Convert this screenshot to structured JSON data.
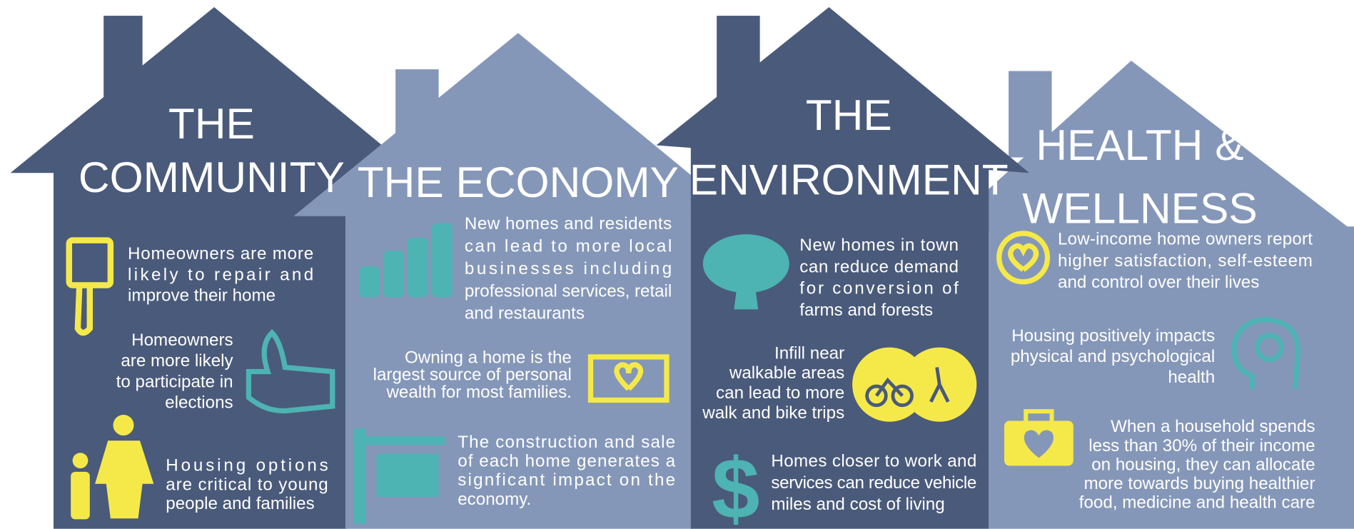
{
  "houses": [
    {
      "title": [
        "THE",
        "COMMUNITY"
      ],
      "items": [
        [
          "Homeowners are more",
          "likely to repair and",
          "improve their home"
        ],
        [
          "Homeowners",
          "are more likely",
          "to participate in",
          "elections"
        ],
        [
          "Housing options",
          "are critical to young",
          "people and families"
        ]
      ]
    },
    {
      "title": [
        "THE ECONOMY"
      ],
      "items": [
        [
          "New homes and residents",
          "can lead to more local",
          "businesses including",
          "professional services, retail",
          "and restaurants"
        ],
        [
          "Owning a home is the",
          "largest source of personal",
          "wealth for most families."
        ],
        [
          "The construction and sale",
          "of each home generates a",
          "signficant impact on the",
          "economy."
        ]
      ]
    },
    {
      "title": [
        "THE",
        "ENVIRONMENT"
      ],
      "items": [
        [
          "New homes in town",
          "can reduce demand",
          "for conversion of",
          "farms and forests"
        ],
        [
          "Infill near",
          "walkable areas",
          "can lead to more",
          "walk and bike trips"
        ],
        [
          "Homes closer to work and",
          "services can reduce vehicle",
          "miles and cost of living"
        ]
      ]
    },
    {
      "title": [
        "HEALTH &",
        "WELLNESS"
      ],
      "items": [
        [
          "Low-income home owners report",
          "higher satisfaction, self-esteem",
          "and control over their lives"
        ],
        [
          "Housing positively impacts",
          "physical and psychological",
          "health"
        ],
        [
          "When a household spends",
          "less than 30% of their income",
          "on housing, they can allocate",
          "more towards buying healthier",
          "food, medicine and health care"
        ]
      ]
    }
  ]
}
